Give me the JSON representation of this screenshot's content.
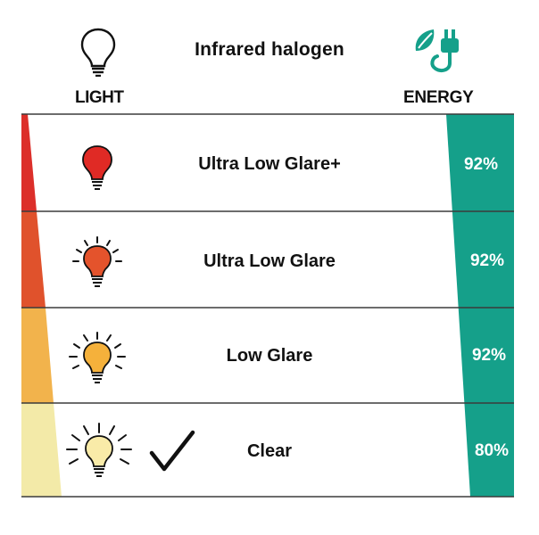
{
  "header": {
    "title": "Infrared halogen",
    "left_label": "LIGHT",
    "right_label": "ENERGY",
    "bulb_icon": "lightbulb-outline-icon",
    "energy_icon": "leaf-plug-icon"
  },
  "colors": {
    "energy": "#15a08a",
    "divider": "#3b3b3b"
  },
  "rows": [
    {
      "name": "Ultra Low Glare+",
      "energy": "92%",
      "bulb_color": "#e02a25",
      "light_color": "#dc2f2a",
      "rays": "none"
    },
    {
      "name": "Ultra Low Glare",
      "energy": "92%",
      "bulb_color": "#e4532c",
      "light_color": "#e0522c",
      "rays": "short"
    },
    {
      "name": "Low Glare",
      "energy": "92%",
      "bulb_color": "#f5b13b",
      "light_color": "#f2b34c",
      "rays": "medium"
    },
    {
      "name": "Clear",
      "energy": "80%",
      "bulb_color": "#f9eba8",
      "light_color": "#f3eaa8",
      "rays": "long",
      "checkmark": "checkmark-icon"
    }
  ]
}
